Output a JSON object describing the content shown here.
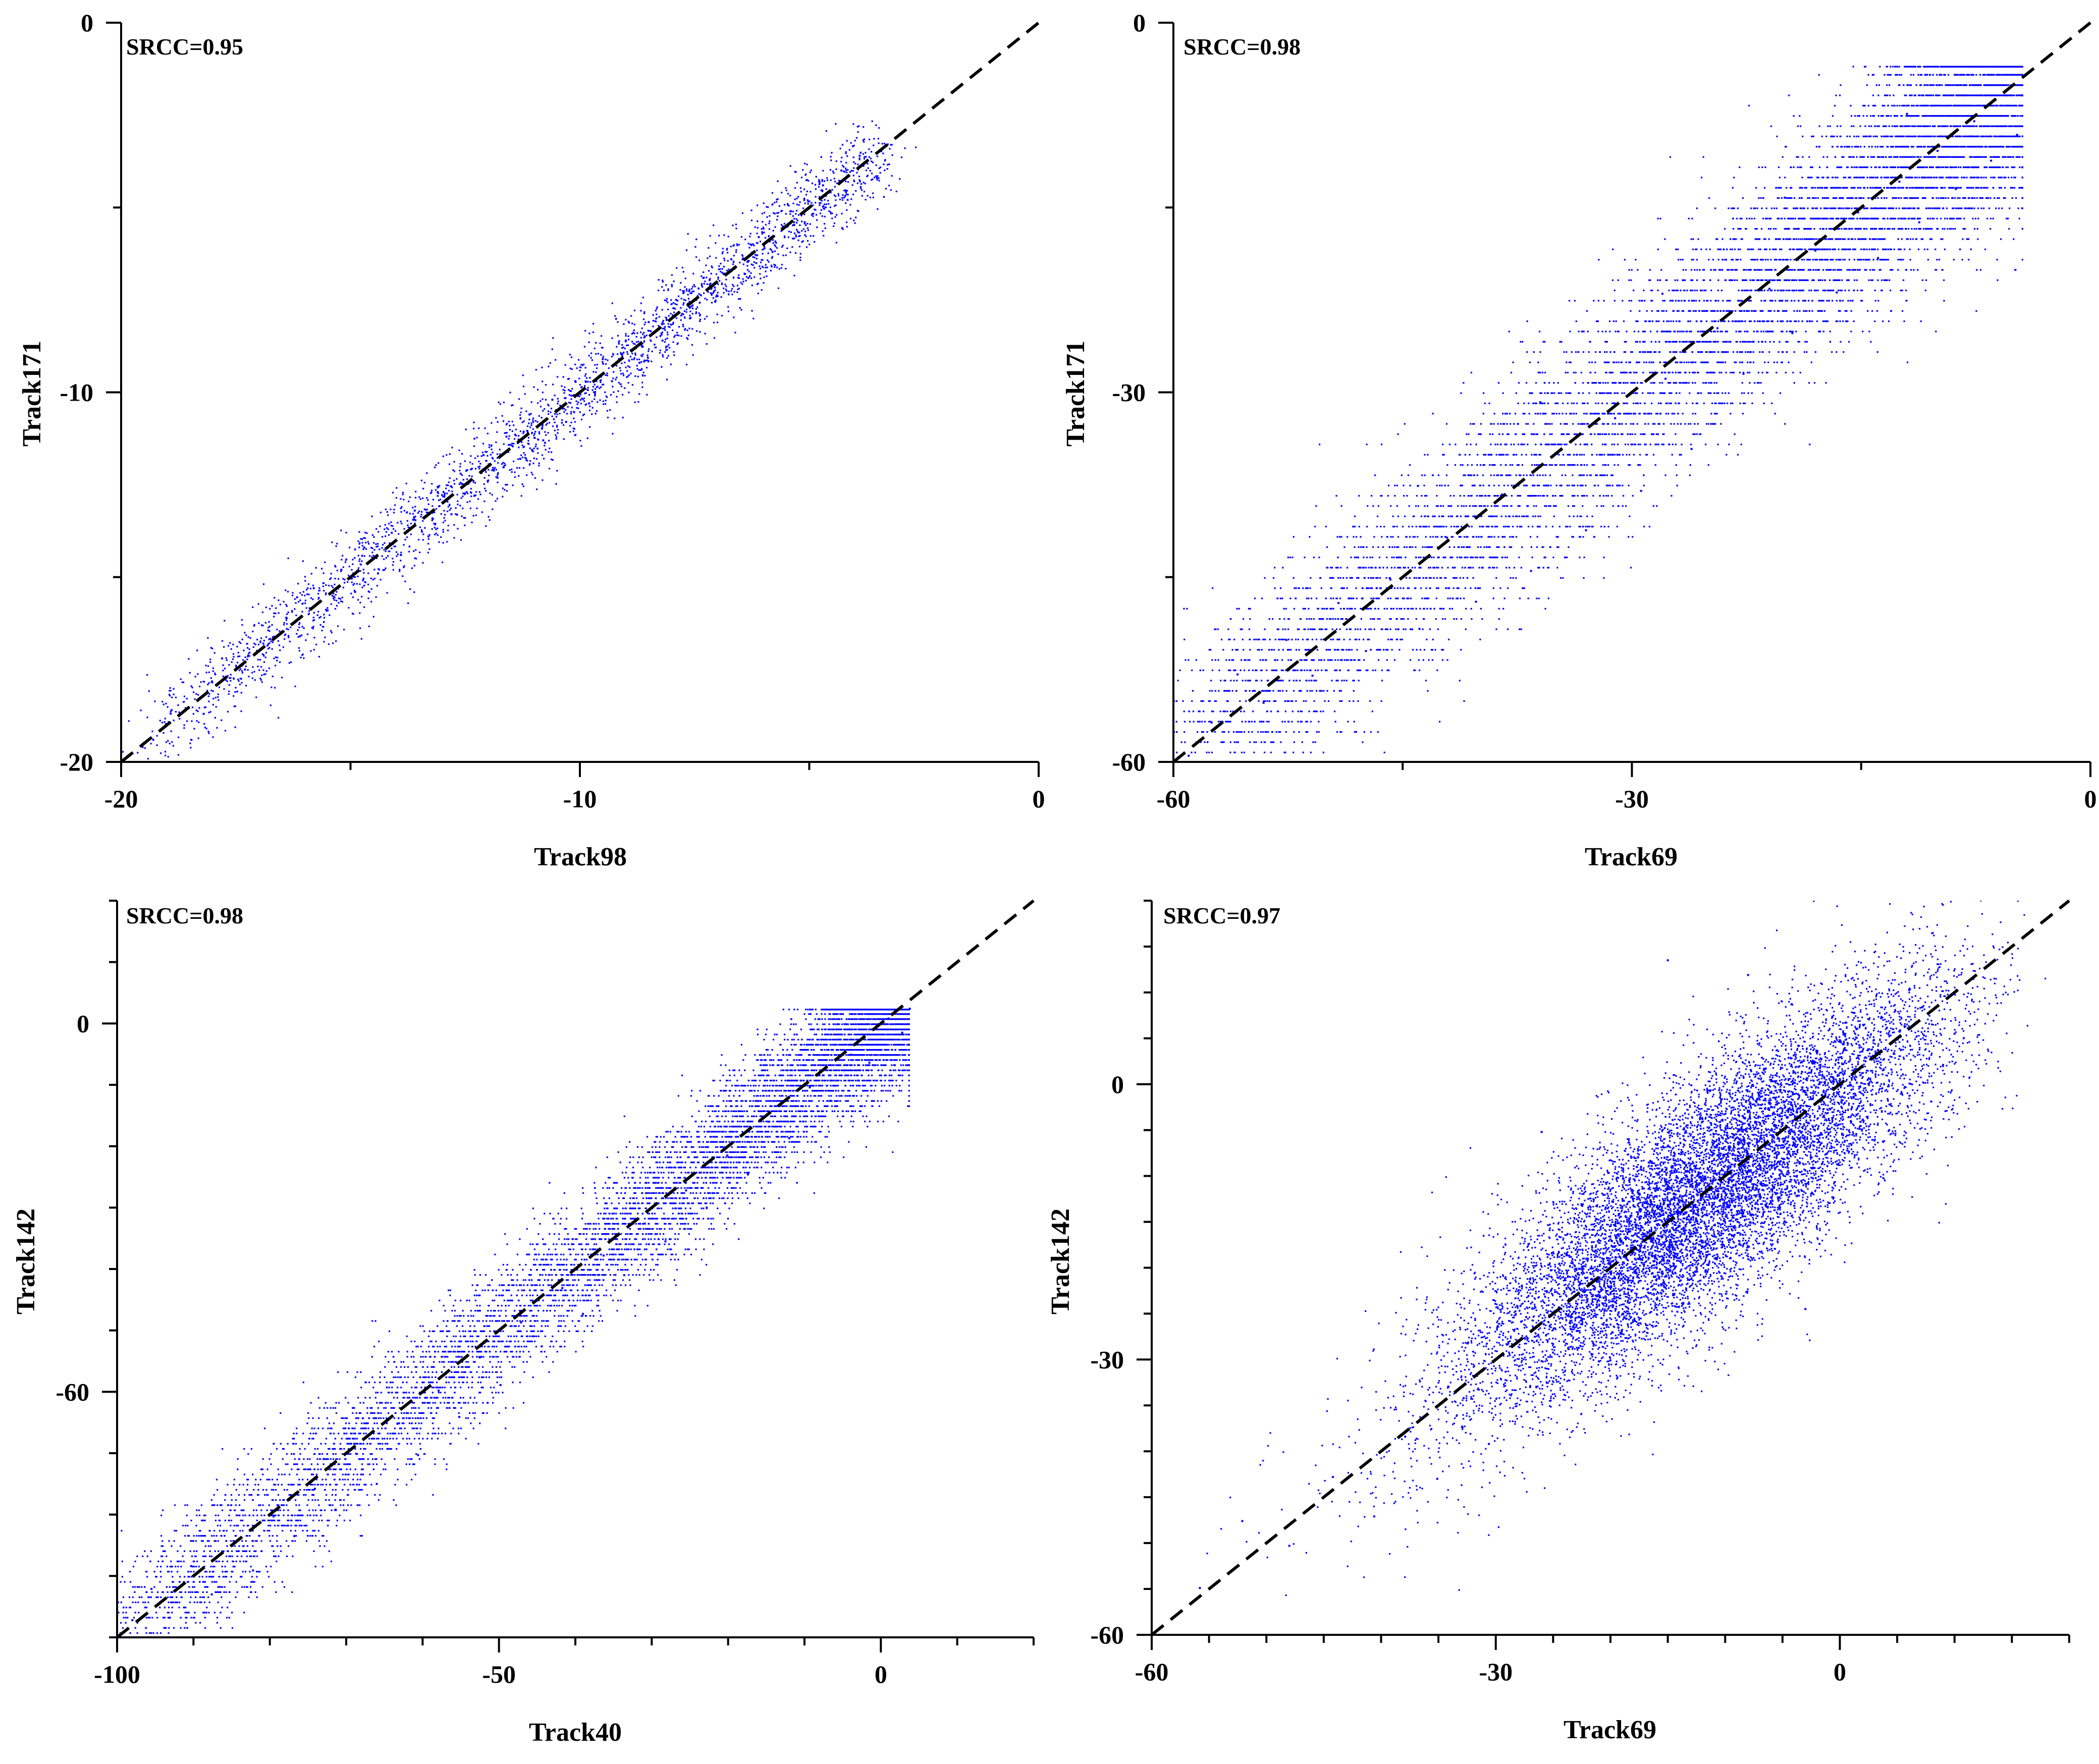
{
  "chart_data": [
    {
      "type": "scatter",
      "xlabel": "Track98",
      "ylabel": "Track171",
      "annotation": "SRCC=0.95",
      "xlim": [
        -20,
        0
      ],
      "ylim": [
        -20,
        0
      ],
      "xticks": [
        -20,
        -10,
        0
      ],
      "yticks": [
        -20,
        -10,
        0
      ],
      "minor_step": 5,
      "reference_line": "y = x (black dashed)",
      "point_color": "#0000ff",
      "points": [
        [
          -19.3,
          -19.4
        ],
        [
          -18.9,
          -18.6
        ],
        [
          -18.2,
          -18.7
        ],
        [
          -17.8,
          -17.2
        ],
        [
          -17.3,
          -17.5
        ],
        [
          -16.9,
          -16.8
        ],
        [
          -16.4,
          -16.1
        ],
        [
          -16.1,
          -16.6
        ],
        [
          -15.8,
          -15.3
        ],
        [
          -15.5,
          -15.9
        ],
        [
          -15.2,
          -14.8
        ],
        [
          -14.9,
          -15.4
        ],
        [
          -14.7,
          -14.2
        ],
        [
          -14.4,
          -14.9
        ],
        [
          -14.1,
          -13.8
        ],
        [
          -13.9,
          -14.4
        ],
        [
          -13.6,
          -13.2
        ],
        [
          -13.3,
          -13.9
        ],
        [
          -13.1,
          -12.7
        ],
        [
          -12.8,
          -13.3
        ],
        [
          -12.6,
          -12.2
        ],
        [
          -12.3,
          -12.8
        ],
        [
          -12.1,
          -11.7
        ],
        [
          -11.8,
          -12.3
        ],
        [
          -11.6,
          -11.2
        ],
        [
          -11.3,
          -11.8
        ],
        [
          -11.1,
          -10.6
        ],
        [
          -10.8,
          -11.3
        ],
        [
          -10.6,
          -10.2
        ],
        [
          -10.3,
          -10.8
        ],
        [
          -10.1,
          -9.7
        ],
        [
          -9.8,
          -10.3
        ],
        [
          -9.5,
          -9.1
        ],
        [
          -9.3,
          -9.7
        ],
        [
          -9.0,
          -8.6
        ],
        [
          -8.7,
          -9.2
        ],
        [
          -8.5,
          -8.1
        ],
        [
          -8.2,
          -8.6
        ],
        [
          -7.9,
          -7.5
        ],
        [
          -7.6,
          -8.0
        ],
        [
          -7.3,
          -6.9
        ],
        [
          -7.0,
          -7.4
        ],
        [
          -6.7,
          -6.4
        ],
        [
          -6.4,
          -6.8
        ],
        [
          -6.1,
          -5.8
        ],
        [
          -5.8,
          -6.2
        ],
        [
          -5.4,
          -5.1
        ],
        [
          -5.1,
          -5.4
        ],
        [
          -4.7,
          -4.4
        ],
        [
          -4.3,
          -4.0
        ],
        [
          -3.9,
          -3.6
        ]
      ]
    },
    {
      "type": "scatter",
      "xlabel": "Track69",
      "ylabel": "Track171",
      "annotation": "SRCC=0.98",
      "xlim": [
        -60,
        0
      ],
      "ylim": [
        -60,
        0
      ],
      "xticks": [
        -60,
        -30,
        0
      ],
      "yticks": [
        -60,
        -30,
        0
      ],
      "minor_step": 15,
      "reference_line": "y = x (black dashed)",
      "point_color": "#0000ff",
      "points": [
        [
          -59.0,
          -59.5
        ],
        [
          -57.5,
          -56.8
        ],
        [
          -55.8,
          -52.9
        ],
        [
          -54.1,
          -55.2
        ],
        [
          -52.6,
          -50.1
        ],
        [
          -50.9,
          -53.0
        ],
        [
          -49.2,
          -47.1
        ],
        [
          -47.4,
          -51.0
        ],
        [
          -45.8,
          -45.2
        ],
        [
          -43.9,
          -49.2
        ],
        [
          -42.1,
          -41.8
        ],
        [
          -40.2,
          -47.0
        ],
        [
          -38.5,
          -38.3
        ],
        [
          -36.6,
          -44.5
        ],
        [
          -34.9,
          -35.0
        ],
        [
          -33.0,
          -41.2
        ],
        [
          -31.1,
          -32.1
        ],
        [
          -29.4,
          -38.0
        ],
        [
          -27.8,
          -28.9
        ],
        [
          -26.1,
          -34.6
        ],
        [
          -24.4,
          -24.8
        ],
        [
          -22.7,
          -28.5
        ],
        [
          -21.0,
          -21.6
        ],
        [
          -19.5,
          -25.2
        ],
        [
          -18.0,
          -18.5
        ],
        [
          -16.6,
          -21.9
        ],
        [
          -15.2,
          -15.4
        ],
        [
          -13.9,
          -19.1
        ],
        [
          -12.5,
          -12.9
        ],
        [
          -11.2,
          -16.2
        ],
        [
          -10.0,
          -10.4
        ],
        [
          -8.8,
          -13.5
        ],
        [
          -7.6,
          -8.0
        ],
        [
          -6.5,
          -11.2
        ],
        [
          -5.5,
          -5.9
        ],
        [
          -4.8,
          -9.1
        ],
        [
          -12.0,
          -7.4
        ],
        [
          -20.0,
          -14.2
        ],
        [
          -28.0,
          -22.0
        ],
        [
          -36.0,
          -30.8
        ],
        [
          -44.0,
          -37.6
        ]
      ]
    },
    {
      "type": "scatter",
      "xlabel": "Track40",
      "ylabel": "Track142",
      "annotation": "SRCC=0.98",
      "xlim": [
        -100,
        20
      ],
      "ylim": [
        -100,
        20
      ],
      "xticks": [
        -100,
        -50,
        0
      ],
      "yticks": [
        -60,
        0
      ],
      "minor_step": 10,
      "reference_line": "y = x (black dashed)",
      "point_color": "#0000ff",
      "points": [
        [
          -98.0,
          -97.2
        ],
        [
          -95.5,
          -92.1
        ],
        [
          -93.1,
          -96.8
        ],
        [
          -90.3,
          -88.4
        ],
        [
          -87.6,
          -93.0
        ],
        [
          -84.9,
          -84.9
        ],
        [
          -82.2,
          -89.1
        ],
        [
          -79.5,
          -80.3
        ],
        [
          -76.8,
          -83.5
        ],
        [
          -74.1,
          -75.8
        ],
        [
          -71.4,
          -79.2
        ],
        [
          -68.7,
          -70.1
        ],
        [
          -66.0,
          -75.0
        ],
        [
          -63.3,
          -65.2
        ],
        [
          -60.6,
          -70.3
        ],
        [
          -57.9,
          -59.8
        ],
        [
          -55.2,
          -64.1
        ],
        [
          -52.5,
          -54.4
        ],
        [
          -49.8,
          -58.9
        ],
        [
          -47.1,
          -48.7
        ],
        [
          -44.4,
          -52.6
        ],
        [
          -41.7,
          -43.1
        ],
        [
          -39.0,
          -47.3
        ],
        [
          -36.3,
          -37.8
        ],
        [
          -33.6,
          -41.0
        ],
        [
          -30.9,
          -32.6
        ],
        [
          -28.2,
          -35.5
        ],
        [
          -25.5,
          -27.2
        ],
        [
          -22.8,
          -30.0
        ],
        [
          -20.1,
          -21.5
        ],
        [
          -17.4,
          -24.6
        ],
        [
          -14.7,
          -16.0
        ],
        [
          -12.0,
          -18.7
        ],
        [
          -9.3,
          -10.4
        ],
        [
          -6.6,
          -12.6
        ],
        [
          -3.9,
          -5.1
        ],
        [
          -1.5,
          -6.4
        ],
        [
          1.0,
          0.8
        ],
        [
          2.8,
          -1.5
        ],
        [
          3.8,
          2.4
        ]
      ]
    },
    {
      "type": "scatter",
      "xlabel": "Track69",
      "ylabel": "Track142",
      "annotation": "SRCC=0.97",
      "xlim": [
        -60,
        20
      ],
      "ylim": [
        -60,
        20
      ],
      "xticks": [
        -60,
        -30,
        0
      ],
      "yticks": [
        -60,
        -30,
        0
      ],
      "minor_step": 5,
      "reference_line": "y = x (black dashed)",
      "point_color": "#0000ff",
      "points": [
        [
          -55.8,
          -54.9
        ],
        [
          -52.1,
          -47.6
        ],
        [
          -48.0,
          -50.3
        ],
        [
          -44.2,
          -42.8
        ],
        [
          -40.6,
          -47.1
        ],
        [
          -37.9,
          -38.4
        ],
        [
          -35.1,
          -43.0
        ],
        [
          -32.8,
          -34.2
        ],
        [
          -30.6,
          -39.2
        ],
        [
          -28.9,
          -28.1
        ],
        [
          -27.0,
          -33.0
        ],
        [
          -25.2,
          -22.5
        ],
        [
          -23.4,
          -27.4
        ],
        [
          -21.6,
          -17.8
        ],
        [
          -19.8,
          -24.3
        ],
        [
          -18.0,
          -13.2
        ],
        [
          -16.2,
          -21.0
        ],
        [
          -14.4,
          -9.6
        ],
        [
          -12.6,
          -17.8
        ],
        [
          -10.8,
          -5.1
        ],
        [
          -9.0,
          -14.2
        ],
        [
          -7.2,
          -1.6
        ],
        [
          -5.4,
          -10.8
        ],
        [
          -3.6,
          1.9
        ],
        [
          -1.8,
          -7.3
        ],
        [
          0.0,
          4.8
        ],
        [
          1.8,
          -4.1
        ],
        [
          3.6,
          7.2
        ],
        [
          5.4,
          -1.0
        ],
        [
          7.2,
          8.4
        ],
        [
          9.0,
          2.1
        ],
        [
          10.0,
          5.5
        ],
        [
          -15.0,
          13.5
        ],
        [
          -8.0,
          11.9
        ],
        [
          -3.0,
          -24.5
        ],
        [
          -26.0,
          -5.2
        ],
        [
          -20.0,
          -30.1
        ]
      ]
    }
  ]
}
